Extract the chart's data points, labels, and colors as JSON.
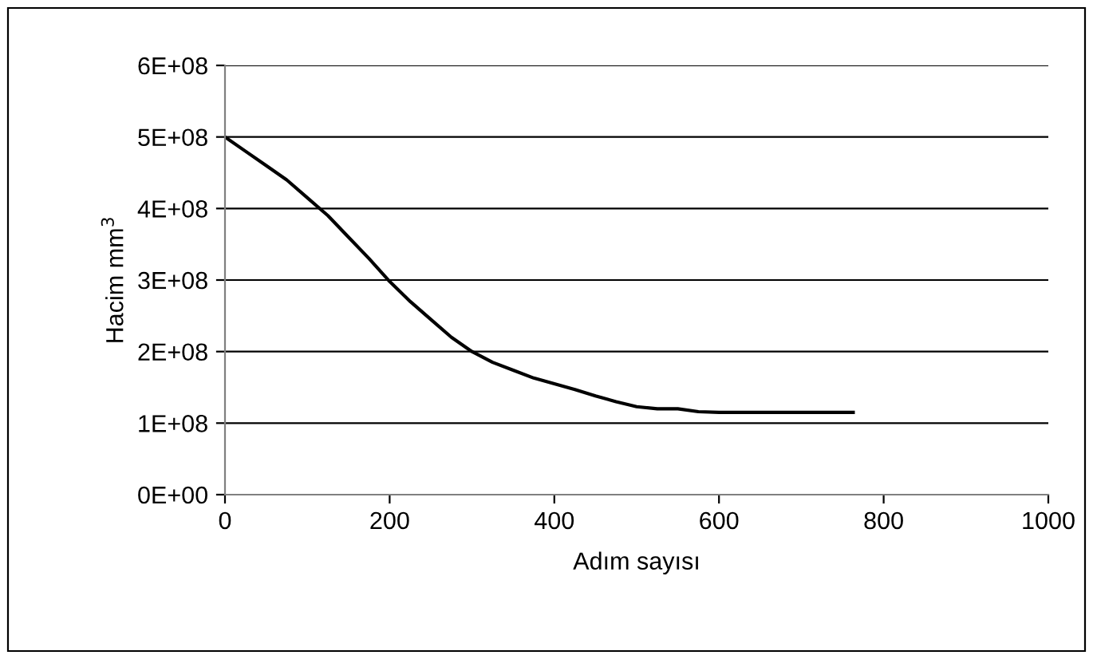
{
  "chart_data": {
    "type": "line",
    "xlabel": "Adım sayısı",
    "ylabel": "Hacim mm$^{3}$",
    "series": [
      {
        "color": "#000000",
        "x": [
          0,
          25,
          50,
          75,
          100,
          125,
          150,
          175,
          200,
          225,
          250,
          275,
          300,
          325,
          350,
          375,
          400,
          425,
          450,
          475,
          500,
          525,
          550,
          575,
          600,
          650,
          700,
          763
        ],
        "values": [
          500000000.0,
          480000000.0,
          460000000.0,
          440000000.0,
          415000000.0,
          390000000.0,
          360000000.0,
          330000000.0,
          298000000.0,
          270000000.0,
          245000000.0,
          220000000.0,
          200000000.0,
          185000000.0,
          174000000.0,
          163000000.0,
          155000000.0,
          147000000.0,
          138000000.0,
          130000000.0,
          123000000.0,
          120000000.0,
          120000000.0,
          116000000.0,
          115000000.0,
          115000000.0,
          115000000.0,
          115000000.0
        ]
      }
    ],
    "xlim": [
      0,
      1000
    ],
    "xticks": [
      0,
      200,
      400,
      600,
      800,
      1000
    ],
    "ylim": [
      0,
      600000000.0
    ],
    "yticks": [
      {
        "value": 0,
        "label": "0E+00"
      },
      {
        "value": 100000000.0,
        "label": "1E+08"
      },
      {
        "value": 200000000.0,
        "label": "2E+08"
      },
      {
        "value": 300000000.0,
        "label": "3E+08"
      },
      {
        "value": 400000000.0,
        "label": "4E+08"
      },
      {
        "value": 500000000.0,
        "label": "5E+08"
      },
      {
        "value": 600000000.0,
        "label": "6E+08"
      }
    ],
    "grid": "y",
    "legend": false,
    "marker": "none",
    "line_style": "solid"
  }
}
